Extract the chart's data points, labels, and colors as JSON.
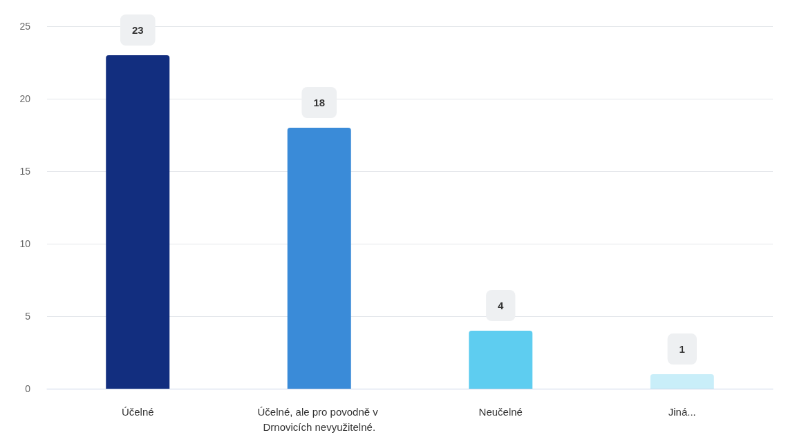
{
  "chart_data": {
    "type": "bar",
    "categories": [
      "Účelné",
      "Účelné, ale pro povodně v Drnovicích nevyužitelné.",
      "Neučelné",
      "Jiná..."
    ],
    "values": [
      23,
      18,
      4,
      1
    ],
    "colors": [
      "#122e7f",
      "#3a8bd8",
      "#5ecdf0",
      "#c9eef9"
    ],
    "ylim": [
      0,
      25
    ],
    "yticks": [
      0,
      5,
      10,
      15,
      20,
      25
    ],
    "grid": "y",
    "data_labels": true
  }
}
